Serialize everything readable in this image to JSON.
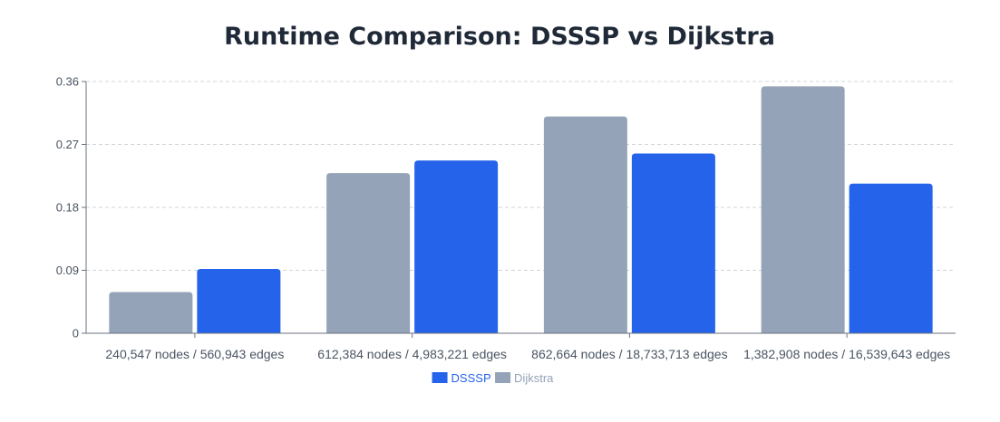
{
  "chart_data": {
    "type": "bar",
    "title": "Runtime Comparison: DSSSP vs Dijkstra",
    "xlabel": "",
    "ylabel": "",
    "categories": [
      "240,547 nodes / 560,943 edges",
      "612,384 nodes / 4,983,221 edges",
      "862,664 nodes / 18,733,713 edges",
      "1,382,908 nodes / 16,539,643 edges"
    ],
    "series": [
      {
        "name": "Dijkstra",
        "color": "#94a3b8",
        "values": [
          0.059,
          0.229,
          0.31,
          0.353
        ]
      },
      {
        "name": "DSSSP",
        "color": "#2563eb",
        "values": [
          0.092,
          0.247,
          0.257,
          0.214
        ]
      }
    ],
    "ylim": [
      0,
      0.36
    ],
    "yticks": [
      "0",
      "0.09",
      "0.18",
      "0.27",
      "0.36"
    ],
    "grid": true,
    "legend": [
      {
        "name": "DSSSP",
        "color": "#2563eb",
        "text_color": "#2563eb"
      },
      {
        "name": "Dijkstra",
        "color": "#94a3b8",
        "text_color": "#94a3b8"
      }
    ],
    "legend_position": "bottom-center"
  }
}
